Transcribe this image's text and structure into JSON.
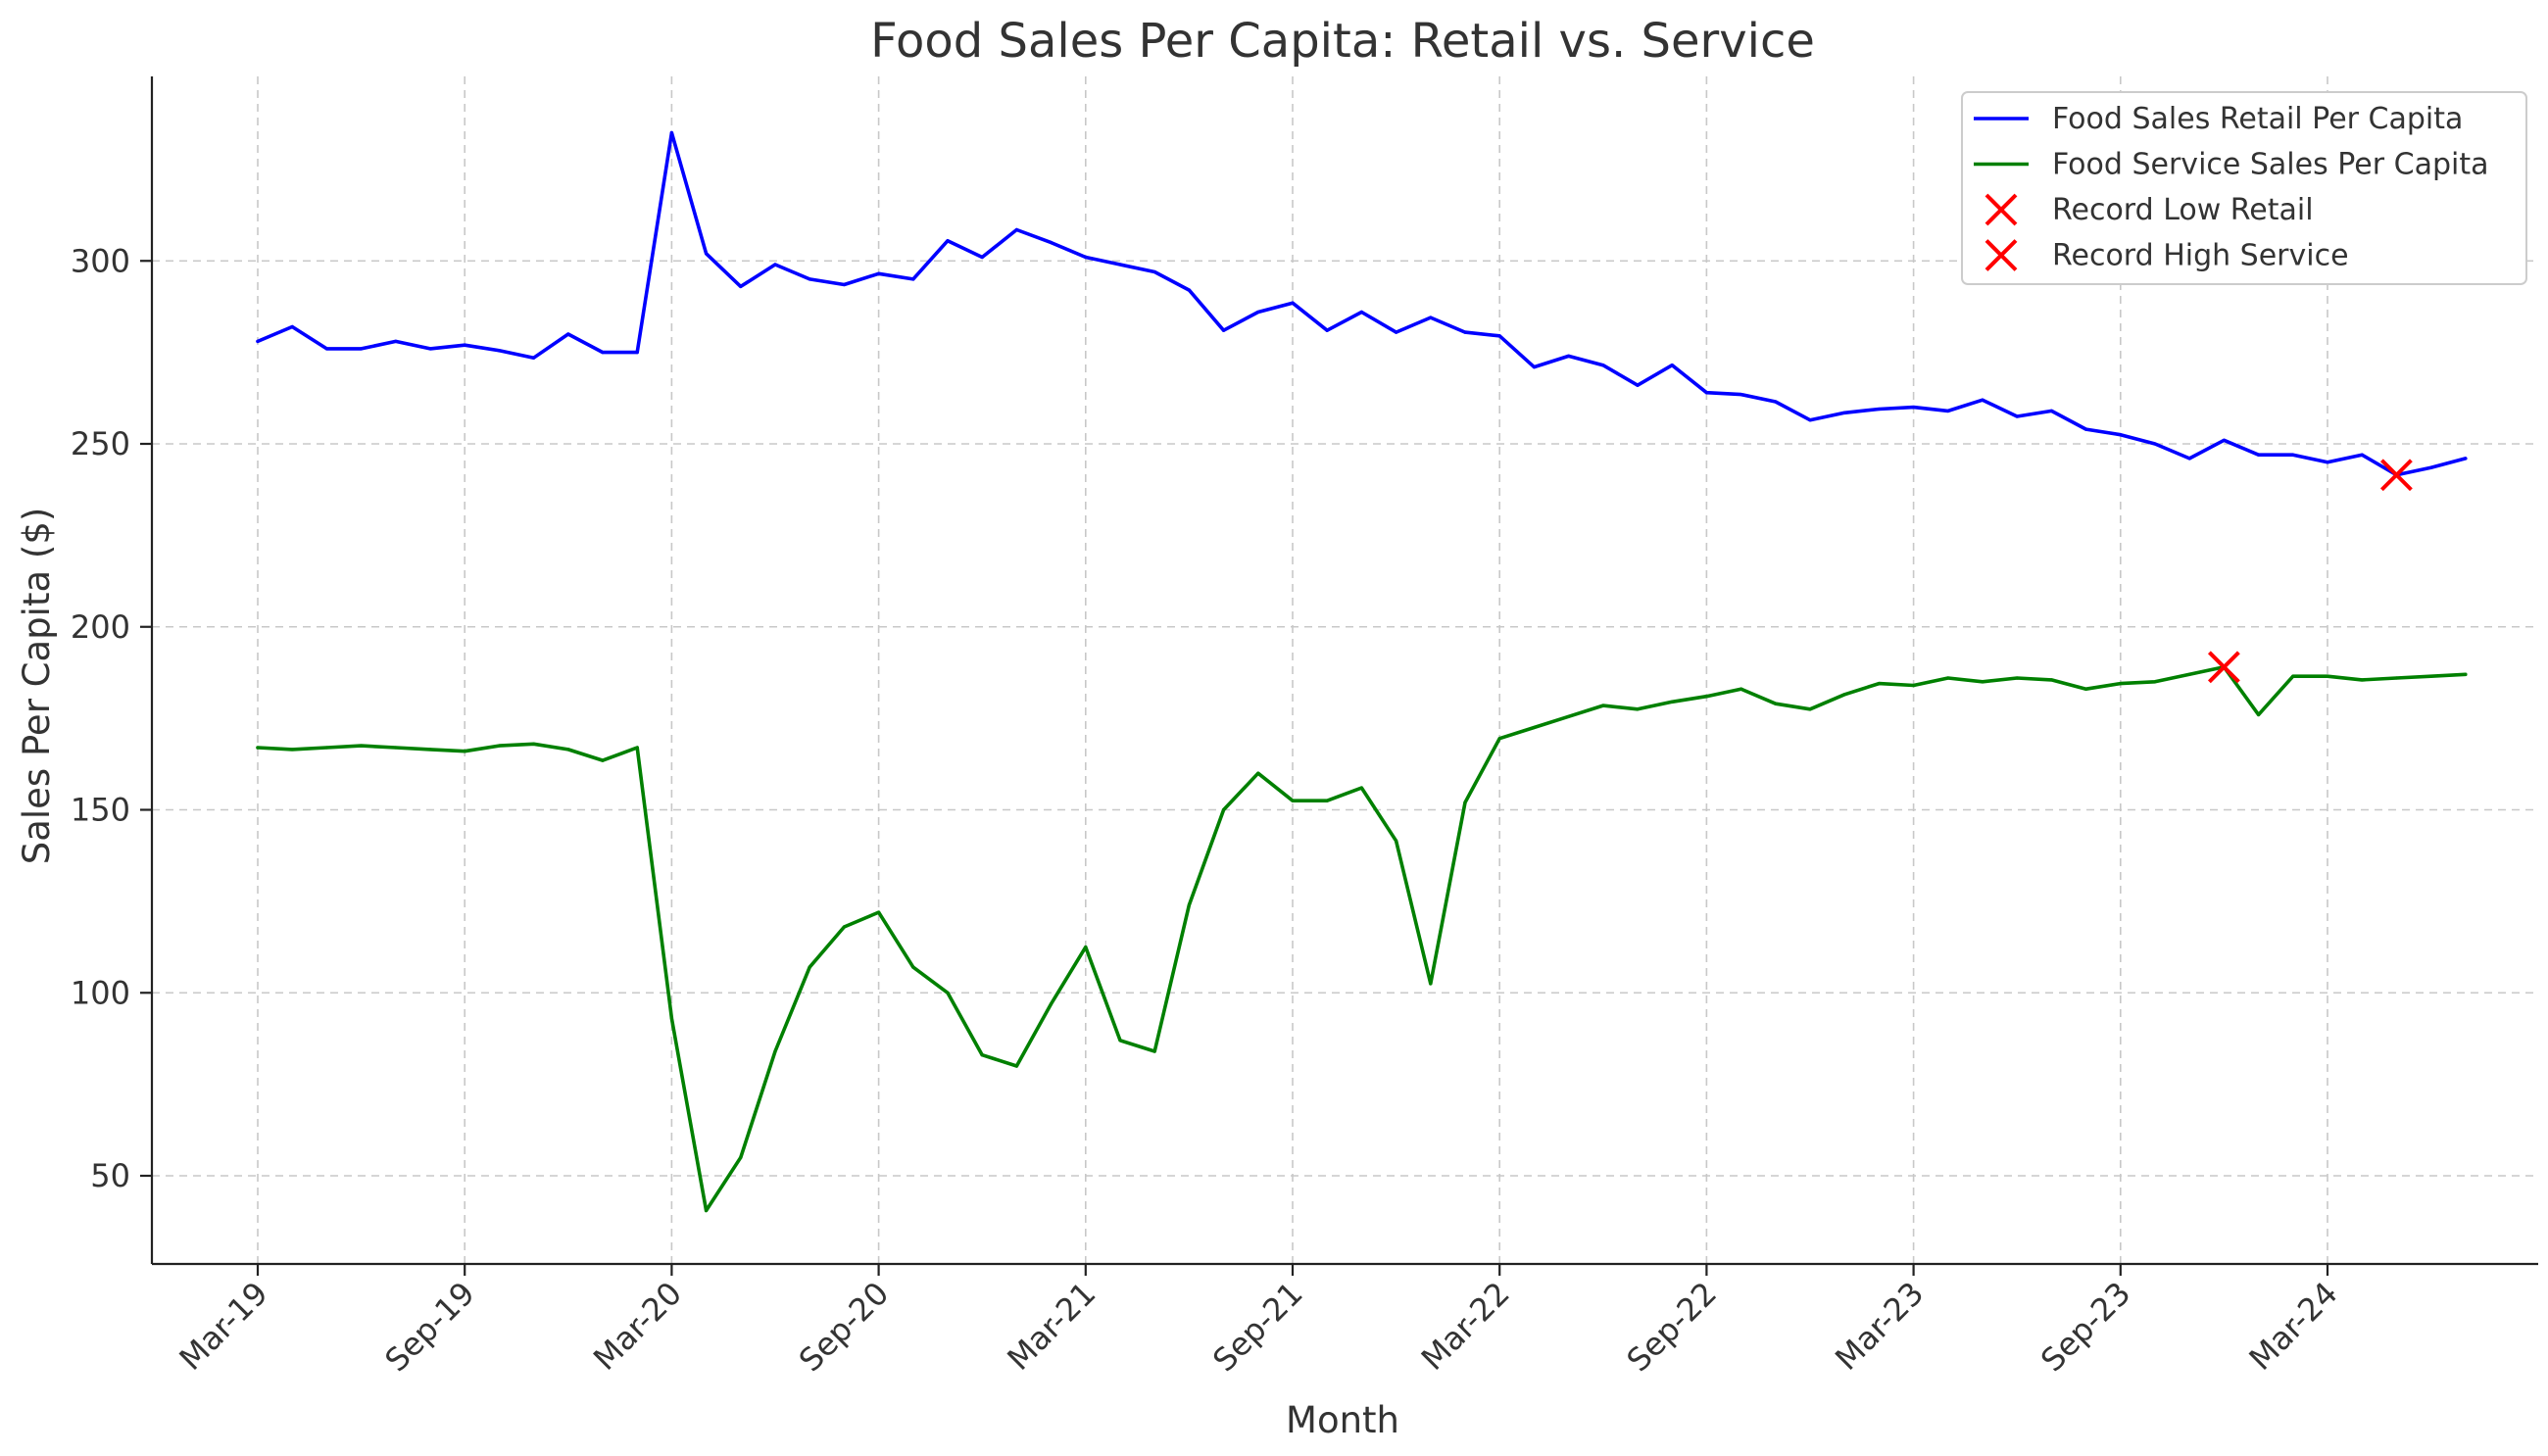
{
  "chart_data": {
    "type": "line",
    "title": "Food Sales Per Capita: Retail vs. Service",
    "xlabel": "Month",
    "ylabel": "Sales Per Capita ($)",
    "ylim": [
      25,
      350
    ],
    "yticks": [
      50,
      100,
      150,
      200,
      250,
      300
    ],
    "grid": true,
    "legend_position": "top-right",
    "x": [
      "Mar-19",
      "Apr-19",
      "May-19",
      "Jun-19",
      "Jul-19",
      "Aug-19",
      "Sep-19",
      "Oct-19",
      "Nov-19",
      "Dec-19",
      "Jan-20",
      "Feb-20",
      "Mar-20",
      "Apr-20",
      "May-20",
      "Jun-20",
      "Jul-20",
      "Aug-20",
      "Sep-20",
      "Oct-20",
      "Nov-20",
      "Dec-20",
      "Jan-21",
      "Feb-21",
      "Mar-21",
      "Apr-21",
      "May-21",
      "Jun-21",
      "Jul-21",
      "Aug-21",
      "Sep-21",
      "Oct-21",
      "Nov-21",
      "Dec-21",
      "Jan-22",
      "Feb-22",
      "Mar-22",
      "Apr-22",
      "May-22",
      "Jun-22",
      "Jul-22",
      "Aug-22",
      "Sep-22",
      "Oct-22",
      "Nov-22",
      "Dec-22",
      "Jan-23",
      "Feb-23",
      "Mar-23",
      "Apr-23",
      "May-23",
      "Jun-23",
      "Jul-23",
      "Aug-23",
      "Sep-23",
      "Oct-23",
      "Nov-23",
      "Dec-23",
      "Jan-24",
      "Feb-24",
      "Mar-24",
      "Apr-24",
      "May-24",
      "Jun-24",
      "Jul-24"
    ],
    "xtick_labels": [
      "Mar-19",
      "Sep-19",
      "Mar-20",
      "Sep-20",
      "Mar-21",
      "Sep-21",
      "Mar-22",
      "Sep-22",
      "Mar-23",
      "Sep-23",
      "Mar-24"
    ],
    "series": [
      {
        "name": "Food Sales Retail Per Capita",
        "color": "#0000ff",
        "values": [
          278,
          282,
          276,
          276,
          278,
          276,
          277,
          275.5,
          273.5,
          280,
          275,
          275,
          335,
          302,
          293,
          299,
          295,
          293.5,
          296.5,
          295,
          305.5,
          301,
          308.5,
          305,
          301,
          299,
          297,
          292,
          281,
          286,
          288.5,
          281,
          286,
          280.5,
          284.5,
          280.5,
          279.5,
          271,
          274,
          271.5,
          266,
          271.5,
          264,
          263.5,
          261.5,
          256.5,
          258.5,
          259.5,
          260,
          259,
          262,
          257.5,
          259,
          254,
          252.5,
          250,
          246,
          251,
          247,
          247,
          245,
          247,
          241.5,
          243.5,
          246
        ]
      },
      {
        "name": "Food Service Sales Per Capita",
        "color": "#008000",
        "values": [
          167,
          166.5,
          167,
          167.5,
          167,
          166.5,
          166,
          167.5,
          168,
          166.5,
          163.5,
          167,
          93,
          40.5,
          55,
          84,
          107,
          118,
          122,
          107,
          100,
          83,
          80,
          97,
          112.5,
          87,
          84,
          124,
          150,
          160,
          152.5,
          152.5,
          156,
          141.5,
          102.5,
          152,
          169.5,
          172.5,
          175.5,
          178.5,
          177.5,
          179.5,
          181,
          183,
          179,
          177.5,
          181.5,
          184.5,
          184,
          186,
          185,
          186,
          185.5,
          183,
          184.5,
          185,
          187,
          189,
          176,
          186.5,
          186.5,
          185.5,
          186,
          186.5,
          187
        ]
      }
    ],
    "markers": [
      {
        "name": "Record Low Retail",
        "symbol": "x",
        "color": "#ff0000",
        "x": "May-24",
        "y": 241.5
      },
      {
        "name": "Record High Service",
        "symbol": "x",
        "color": "#ff0000",
        "x": "Dec-23",
        "y": 189
      }
    ]
  }
}
